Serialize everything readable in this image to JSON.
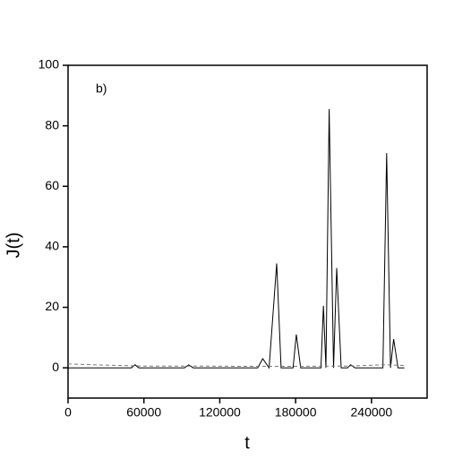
{
  "chart_data": {
    "type": "line",
    "annotation": "b)",
    "x_label": "t",
    "y_label": "J(t)",
    "xlim": [
      0,
      284000
    ],
    "ylim": [
      -10,
      100
    ],
    "xticks": [
      0,
      60000,
      120000,
      180000,
      240000
    ],
    "yticks": [
      0,
      20,
      40,
      60,
      80,
      100
    ],
    "series": [
      {
        "color": "#000000",
        "style": "solid",
        "x": [
          0,
          50000,
          53000,
          56000,
          92000,
          95500,
          99000,
          150000,
          154000,
          159000,
          165000,
          168500,
          178000,
          180500,
          184000,
          200000,
          202000,
          204000,
          206500,
          210000,
          212500,
          216000,
          221000,
          223500,
          227000,
          249000,
          252000,
          255000,
          257500,
          261000,
          266000
        ],
        "values": [
          0,
          0,
          1,
          0,
          0,
          1,
          0,
          0,
          3,
          0,
          34.5,
          0,
          0,
          11,
          0,
          0,
          20.5,
          0,
          85.5,
          0,
          33,
          0,
          0,
          1,
          0,
          0,
          71,
          0,
          9.5,
          0,
          0
        ]
      },
      {
        "color": "#777777",
        "style": "dashed",
        "x": [
          0,
          20000,
          60000,
          100000,
          140000,
          180000,
          220000,
          250000,
          266000
        ],
        "values": [
          1.3,
          1,
          0.6,
          0.6,
          0.5,
          0.5,
          0.6,
          1,
          0.8
        ]
      }
    ]
  }
}
